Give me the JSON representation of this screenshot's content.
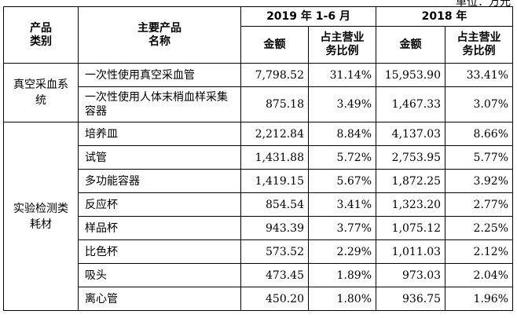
{
  "unit_note": "单位：万元",
  "header": {
    "category": "产品\n类别",
    "product": "主要产品\n名称",
    "period1": "2019 年 1-6 月",
    "period2": "2018 年",
    "amount": "金额",
    "ratio": "占主营业\n务比例"
  },
  "groups": [
    {
      "category": "真空采血系\n统",
      "rows": [
        {
          "name": "一次性使用真空采血管",
          "amt1": "7,798.52",
          "pct1": "31.14%",
          "amt2": "15,953.90",
          "pct2": "33.41%"
        },
        {
          "name": "一次性使用人体末梢血样采集容器",
          "amt1": "875.18",
          "pct1": "3.49%",
          "amt2": "1,467.33",
          "pct2": "3.07%"
        }
      ]
    },
    {
      "category": "实验检测类\n耗材",
      "rows": [
        {
          "name": "培养皿",
          "amt1": "2,212.84",
          "pct1": "8.84%",
          "amt2": "4,137.03",
          "pct2": "8.66%"
        },
        {
          "name": "试管",
          "amt1": "1,431.88",
          "pct1": "5.72%",
          "amt2": "2,753.95",
          "pct2": "5.77%"
        },
        {
          "name": "多功能容器",
          "amt1": "1,419.15",
          "pct1": "5.67%",
          "amt2": "1,872.25",
          "pct2": "3.92%"
        },
        {
          "name": "反应杯",
          "amt1": "854.54",
          "pct1": "3.41%",
          "amt2": "1,323.20",
          "pct2": "2.77%"
        },
        {
          "name": "样品杯",
          "amt1": "943.39",
          "pct1": "3.77%",
          "amt2": "1,075.12",
          "pct2": "2.25%"
        },
        {
          "name": "比色杯",
          "amt1": "573.52",
          "pct1": "2.29%",
          "amt2": "1,011.03",
          "pct2": "2.12%"
        },
        {
          "name": "吸头",
          "amt1": "473.45",
          "pct1": "1.89%",
          "amt2": "973.03",
          "pct2": "2.04%"
        },
        {
          "name": "离心管",
          "amt1": "450.20",
          "pct1": "1.80%",
          "amt2": "936.75",
          "pct2": "1.96%"
        }
      ]
    }
  ]
}
